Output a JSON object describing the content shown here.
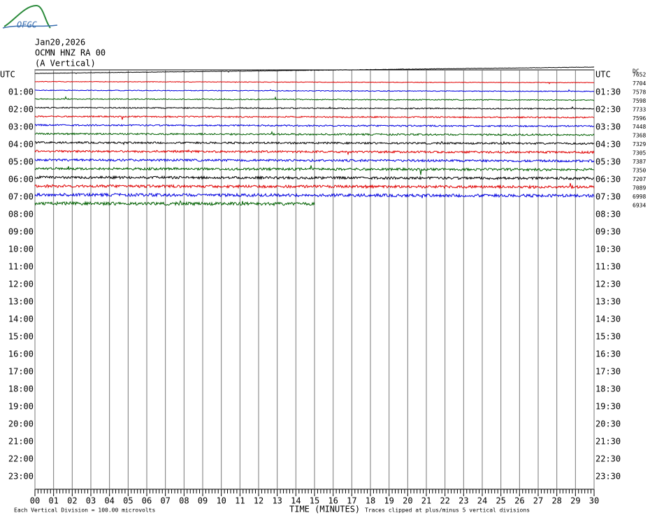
{
  "header": {
    "logo": "OFGC",
    "date": "Jan20,2026",
    "station": "OCMN HNZ RA 00",
    "component": "(A Vertical)",
    "dc": "DC"
  },
  "left_labels": [
    "UTC",
    "01:00",
    "02:00",
    "03:00",
    "04:00",
    "05:00",
    "06:00",
    "07:00",
    "08:00",
    "09:00",
    "10:00",
    "11:00",
    "12:00",
    "13:00",
    "14:00",
    "15:00",
    "16:00",
    "17:00",
    "18:00",
    "19:00",
    "20:00",
    "21:00",
    "22:00",
    "23:00"
  ],
  "right_labels": [
    "UTC",
    "01:30",
    "02:30",
    "03:30",
    "04:30",
    "05:30",
    "06:30",
    "07:30",
    "08:30",
    "09:30",
    "10:30",
    "11:30",
    "12:30",
    "13:30",
    "14:30",
    "15:30",
    "16:30",
    "17:30",
    "18:30",
    "19:30",
    "20:30",
    "21:30",
    "22:30",
    "23:30"
  ],
  "traces": [
    {
      "label": "7652",
      "color": "#000000"
    },
    {
      "label": "7704",
      "color": "#e00000"
    },
    {
      "label": "7578",
      "color": "#0000e0"
    },
    {
      "label": "7598",
      "color": "#006000"
    },
    {
      "label": "7733",
      "color": "#000000"
    },
    {
      "label": "7596",
      "color": "#e00000"
    },
    {
      "label": "7448",
      "color": "#0000e0"
    },
    {
      "label": "7368",
      "color": "#006000"
    },
    {
      "label": "7329",
      "color": "#000000"
    },
    {
      "label": "7305",
      "color": "#e00000"
    },
    {
      "label": "7387",
      "color": "#0000e0"
    },
    {
      "label": "7350",
      "color": "#006000"
    },
    {
      "label": "7207",
      "color": "#000000"
    },
    {
      "label": "7089",
      "color": "#e00000"
    },
    {
      "label": "6998",
      "color": "#0000e0"
    },
    {
      "label": "6934",
      "color": "#006000"
    }
  ],
  "x_ticks": [
    "00",
    "01",
    "02",
    "03",
    "04",
    "05",
    "06",
    "07",
    "08",
    "09",
    "10",
    "11",
    "12",
    "13",
    "14",
    "15",
    "16",
    "17",
    "18",
    "19",
    "20",
    "21",
    "22",
    "23",
    "24",
    "25",
    "26",
    "27",
    "28",
    "29",
    "30"
  ],
  "footer": {
    "xlabel": "TIME (MINUTES)",
    "scale": "Each Vertical Division =  100.00 microvolts",
    "clip": "Traces clipped at plus/minus 5 vertical divisions"
  }
}
